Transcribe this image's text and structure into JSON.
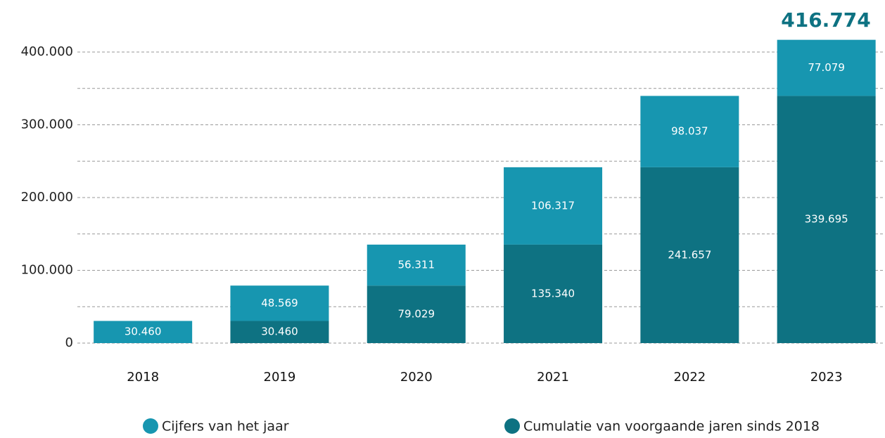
{
  "chart_data": {
    "type": "stacked_bar",
    "categories": [
      "2018",
      "2019",
      "2020",
      "2021",
      "2022",
      "2023"
    ],
    "series": [
      {
        "name": "Cumulatie van voorgaande jaren sinds 2018",
        "color": "#0e7282",
        "values": [
          null,
          30460,
          79029,
          135340,
          241657,
          339695
        ],
        "value_labels": [
          null,
          "30.460",
          "79.029",
          "135.340",
          "241.657",
          "339.695"
        ]
      },
      {
        "name": "Cijfers van het jaar",
        "color": "#1796b0",
        "values": [
          30460,
          48569,
          56311,
          106317,
          98037,
          77079
        ],
        "value_labels": [
          "30.460",
          "48.569",
          "56.311",
          "106.317",
          "98.037",
          "77.079"
        ]
      }
    ],
    "annotation": "416.774",
    "ylim": [
      0,
      420000
    ],
    "yticks": [
      0,
      {
        "value": 100000,
        "label": "100.000"
      },
      {
        "value": 200000,
        "label": "200.000"
      },
      {
        "value": 300000,
        "label": "300.000"
      },
      {
        "value": 400000,
        "label": "400.000"
      }
    ],
    "minor_yticks": [
      50000,
      150000,
      250000,
      350000
    ],
    "grid": true
  }
}
